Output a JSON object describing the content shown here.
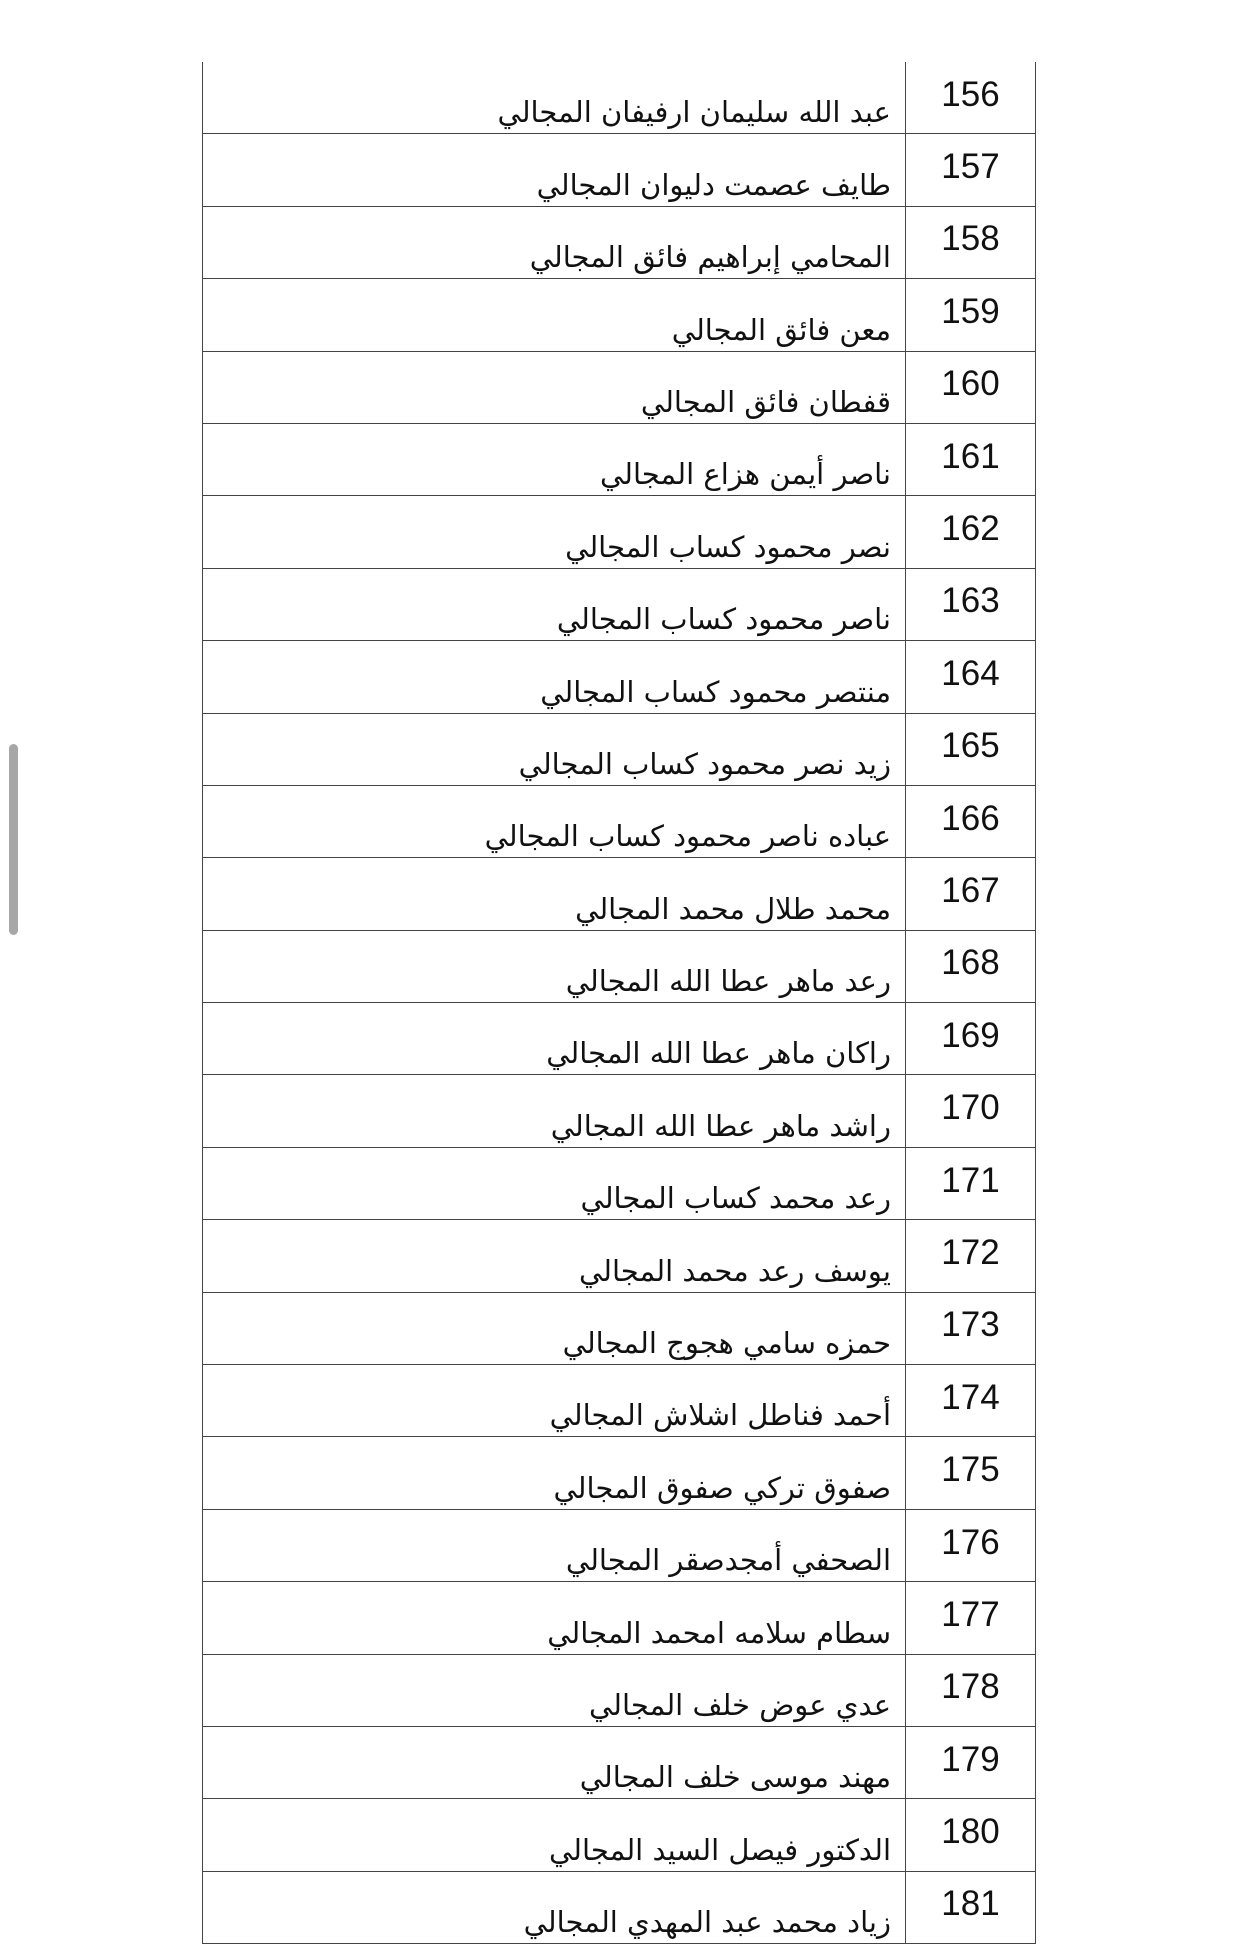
{
  "rows": [
    {
      "num": "156",
      "name": "عبد الله سليمان ارفيفان المجالي"
    },
    {
      "num": "157",
      "name": "طايف عصمت دليوان المجالي"
    },
    {
      "num": "158",
      "name": "المحامي إبراهيم فائق المجالي"
    },
    {
      "num": "159",
      "name": "معن فائق المجالي"
    },
    {
      "num": "160",
      "name": "قفطان فائق المجالي"
    },
    {
      "num": "161",
      "name": "ناصر أيمن هزاع المجالي"
    },
    {
      "num": "162",
      "name": "نصر محمود كساب المجالي"
    },
    {
      "num": "163",
      "name": "ناصر محمود كساب المجالي"
    },
    {
      "num": "164",
      "name": "منتصر محمود كساب المجالي"
    },
    {
      "num": "165",
      "name": "زيد نصر محمود كساب المجالي"
    },
    {
      "num": "166",
      "name": "عباده ناصر محمود كساب المجالي"
    },
    {
      "num": "167",
      "name": "محمد طلال محمد المجالي"
    },
    {
      "num": "168",
      "name": "رعد ماهر عطا الله المجالي"
    },
    {
      "num": "169",
      "name": "راكان ماهر عطا الله المجالي"
    },
    {
      "num": "170",
      "name": "راشد ماهر عطا الله المجالي"
    },
    {
      "num": "171",
      "name": "رعد محمد كساب المجالي"
    },
    {
      "num": "172",
      "name": "يوسف رعد محمد المجالي"
    },
    {
      "num": "173",
      "name": "حمزه سامي هجوج المجالي"
    },
    {
      "num": "174",
      "name": "أحمد فناطل اشلاش المجالي"
    },
    {
      "num": "175",
      "name": "صفوق تركي صفوق المجالي"
    },
    {
      "num": "176",
      "name": "الصحفي أمجدصقر المجالي"
    },
    {
      "num": "177",
      "name": "سطام سلامه امحمد المجالي"
    },
    {
      "num": "178",
      "name": "عدي عوض خلف المجالي"
    },
    {
      "num": "179",
      "name": "مهند موسى خلف المجالي"
    },
    {
      "num": "180",
      "name": "الدكتور فيصل السيد المجالي"
    },
    {
      "num": "181",
      "name": "زياد محمد عبد المهدي المجالي"
    }
  ]
}
